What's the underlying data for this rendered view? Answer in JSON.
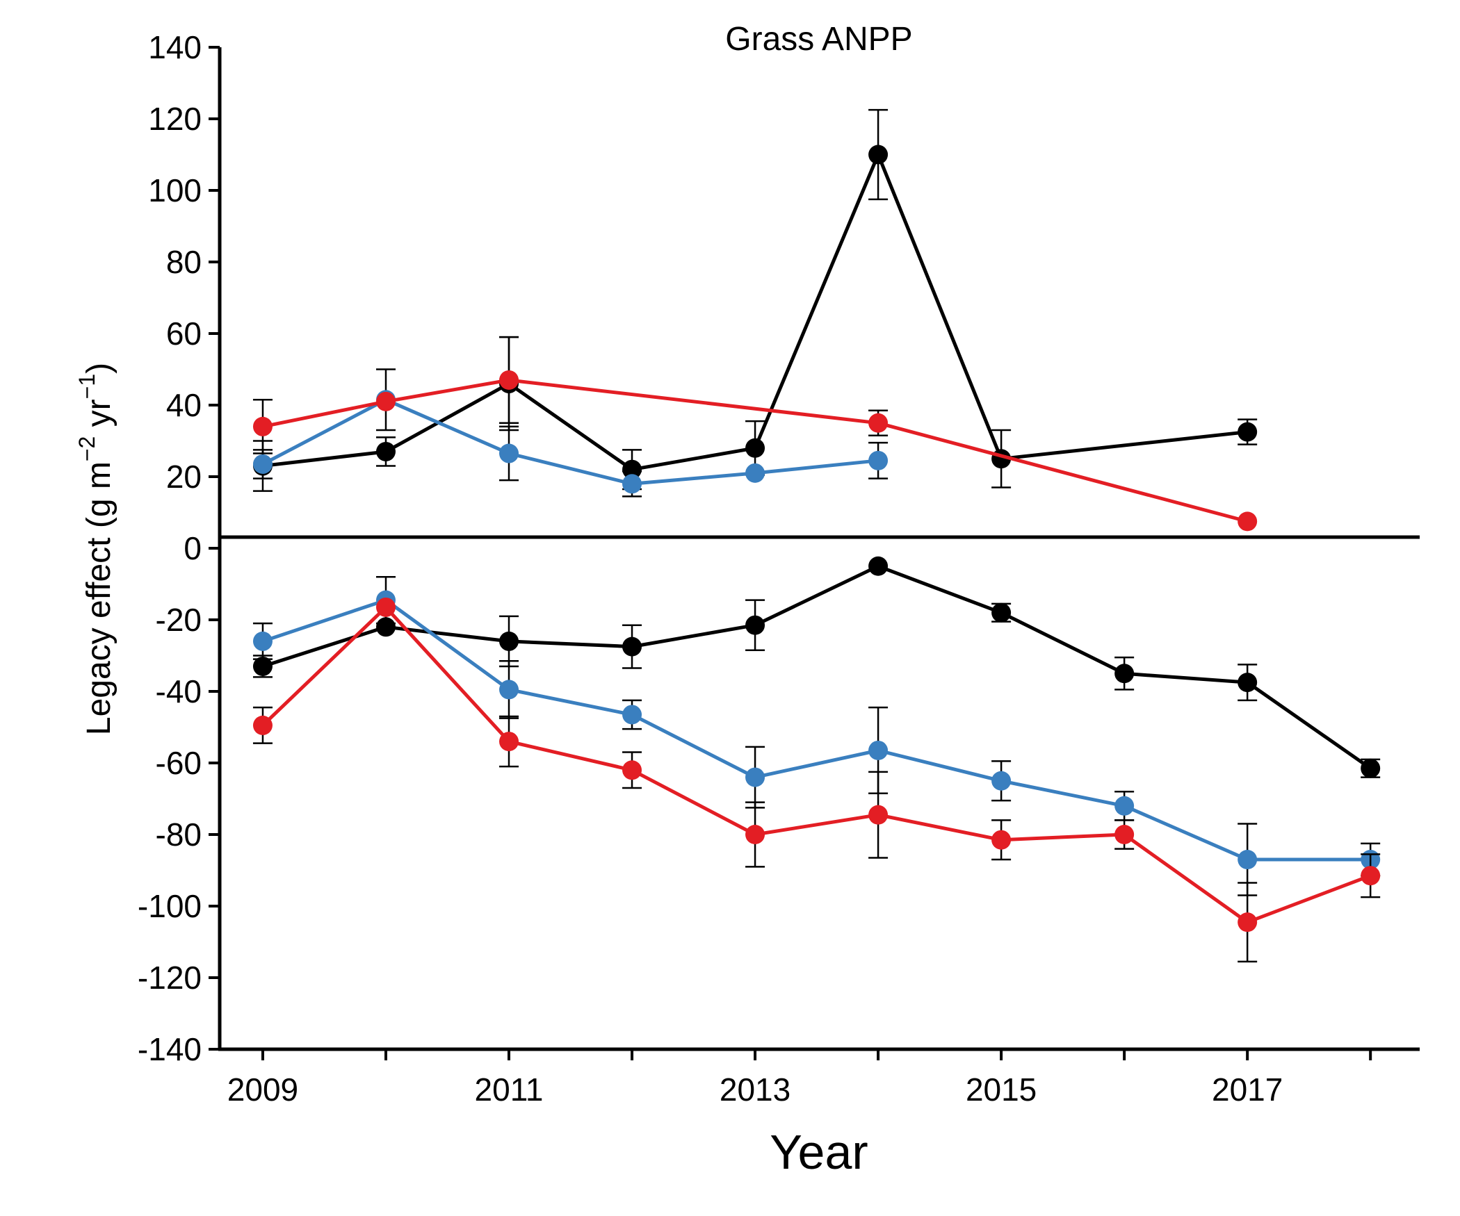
{
  "chart_data": {
    "type": "line",
    "title": "Grass ANPP",
    "xlabel": "Year",
    "ylabel": {
      "text": "Legacy effect (g  m",
      "sup1": "−2",
      "mid": " yr",
      "sup2": "−1",
      "end": ")"
    },
    "xlim": [
      2008.65,
      2018.4
    ],
    "ylim": [
      -140,
      140
    ],
    "xticks": [
      2009,
      2010,
      2011,
      2012,
      2013,
      2014,
      2015,
      2016,
      2017,
      2018
    ],
    "xtick_labels": [
      "2009",
      "",
      "2011",
      "",
      "2013",
      "",
      "2015",
      "",
      "2017",
      ""
    ],
    "yticks": [
      -140,
      -120,
      -100,
      -80,
      -60,
      -40,
      -20,
      0,
      20,
      40,
      60,
      80,
      100,
      120,
      140
    ],
    "ytick_labels": [
      "-140",
      "-120",
      "-100",
      "-80",
      "-60",
      "-40",
      "-20",
      "0",
      "20",
      "40",
      "60",
      "80",
      "100",
      "120",
      "140"
    ],
    "zero_line": true,
    "grid": false,
    "legend": "none",
    "series": [
      {
        "color": "#000000",
        "x": [
          2009,
          2010,
          2011,
          2012,
          2013,
          2014,
          2015,
          2017
        ],
        "y": [
          23,
          27,
          46,
          22,
          28,
          110,
          25,
          32.5
        ],
        "err": [
          7,
          4,
          13,
          5.5,
          7.5,
          12.5,
          8,
          3.5
        ]
      },
      {
        "color": "#3a7fbf",
        "x": [
          2009,
          2010,
          2011,
          2012,
          2013,
          2014
        ],
        "y": [
          23.5,
          41.5,
          26.5,
          18,
          21,
          24.5
        ],
        "err": [
          4,
          8.5,
          7.5,
          3.5,
          0,
          5
        ]
      },
      {
        "color": "#e31e24",
        "x": [
          2009,
          2010,
          2011,
          2014,
          2017
        ],
        "y": [
          34,
          41,
          47,
          35,
          7.5
        ],
        "err": [
          7.5,
          0,
          12,
          3.5,
          0
        ]
      },
      {
        "color": "#000000",
        "x": [
          2009,
          2010,
          2011,
          2012,
          2013,
          2014,
          2015,
          2016,
          2017,
          2018
        ],
        "y": [
          -33,
          -22,
          -26,
          -27.5,
          -21.5,
          -5,
          -18,
          -35,
          -37.5,
          -61.5
        ],
        "err": [
          3,
          0,
          7,
          6,
          7,
          0,
          2.5,
          4.5,
          5,
          2.5
        ]
      },
      {
        "color": "#3a7fbf",
        "x": [
          2009,
          2010,
          2011,
          2012,
          2013,
          2014,
          2015,
          2016,
          2017,
          2018
        ],
        "y": [
          -26,
          -14.5,
          -39.5,
          -46.5,
          -64,
          -56.5,
          -65,
          -72,
          -87,
          -87
        ],
        "err": [
          5,
          6.5,
          8,
          4,
          8.5,
          12,
          5.5,
          4,
          10,
          4.5
        ]
      },
      {
        "color": "#e31e24",
        "x": [
          2009,
          2010,
          2011,
          2012,
          2013,
          2014,
          2015,
          2016,
          2017,
          2018
        ],
        "y": [
          -49.5,
          -16.5,
          -54,
          -62,
          -80,
          -74.5,
          -81.5,
          -80,
          -104.5,
          -91.5
        ],
        "err": [
          5,
          0,
          7,
          5,
          9,
          12,
          5.5,
          4,
          11,
          6
        ]
      }
    ]
  }
}
